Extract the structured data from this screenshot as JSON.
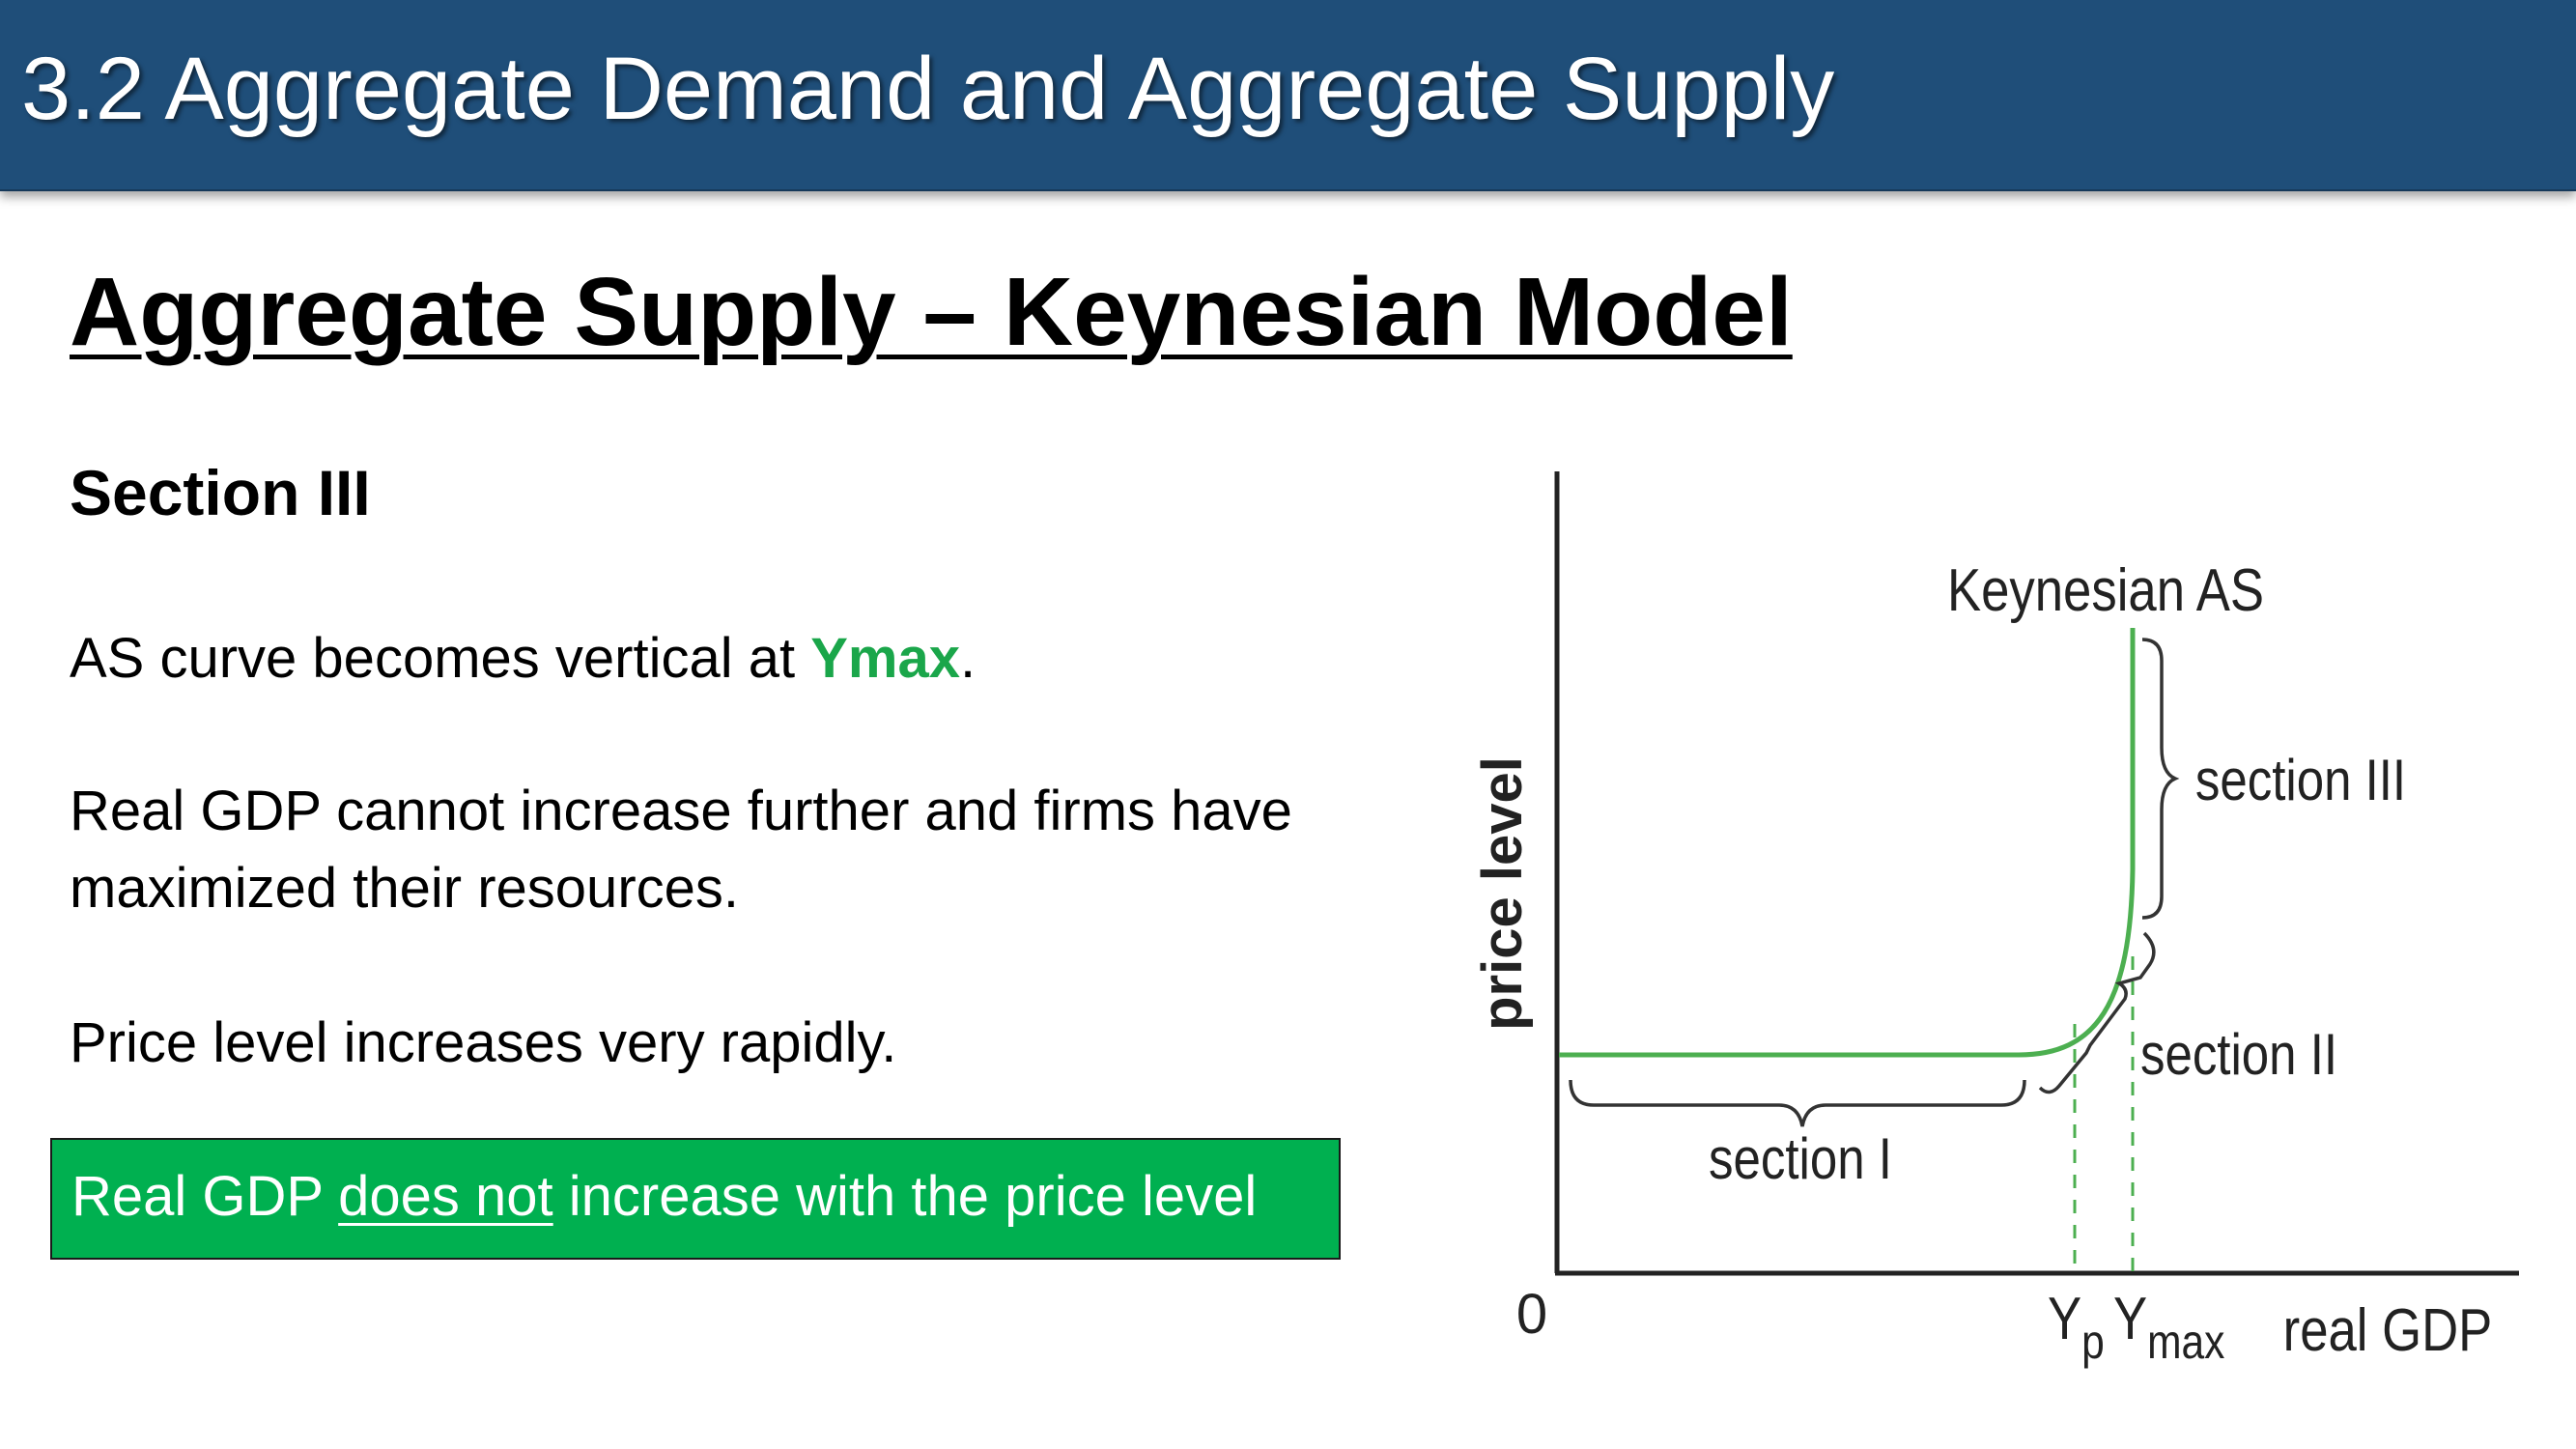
{
  "header": {
    "title": "3.2 Aggregate Demand and Aggregate Supply"
  },
  "slide": {
    "title": "Aggregate Supply – Keynesian Model",
    "section_heading": "Section III",
    "p1_before": "AS curve becomes vertical at ",
    "p1_highlight": "Ymax",
    "p1_after": ".",
    "p2_line1": "Real GDP cannot increase further and firms have",
    "p2_line2": "maximized their resources.",
    "p3": "Price level increases very rapidly.",
    "callout": {
      "before": "Real GDP ",
      "underlined": "does not",
      "after": " increase with the price level"
    }
  },
  "diagram": {
    "y_axis_label": "price level",
    "x_axis_label": "real GDP",
    "origin_label": "0",
    "curve_label": "Keynesian AS",
    "section_1": "section I",
    "section_2": "section II",
    "section_3": "section III",
    "yp_main": "Y",
    "yp_sub": "p",
    "ymax_main": "Y",
    "ymax_sub": "max",
    "colors": {
      "curve": "#4caf50",
      "axis": "#222222",
      "brace": "#333333"
    }
  }
}
